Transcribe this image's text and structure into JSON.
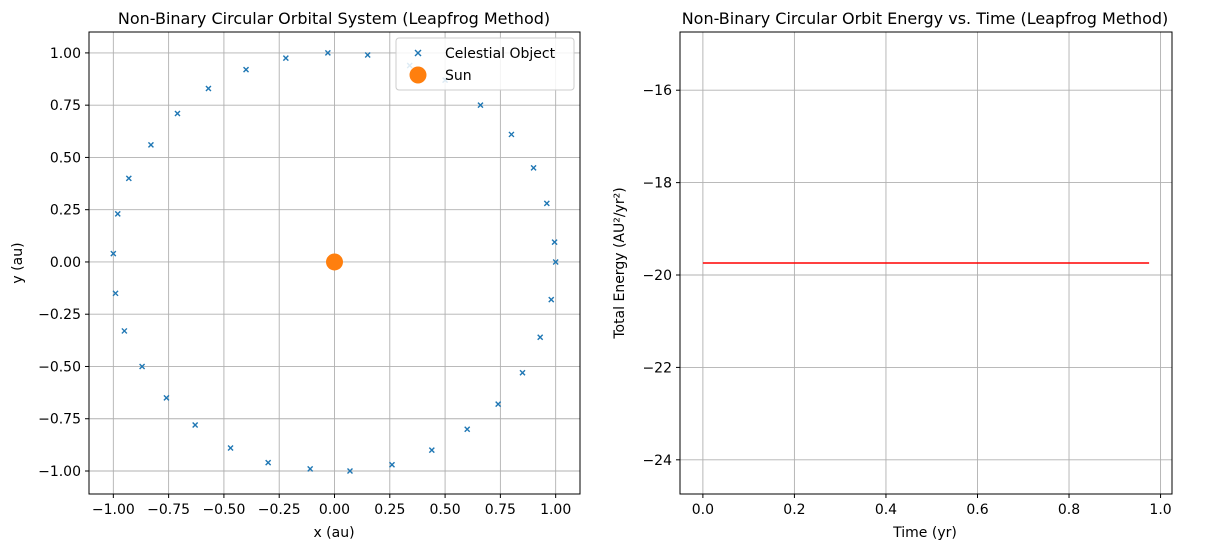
{
  "chart_data": [
    {
      "type": "scatter",
      "title": "Non-Binary Circular Orbital System (Leapfrog Method)",
      "xlabel": "x (au)",
      "ylabel": "y (au)",
      "xlim": [
        -1.11,
        1.11
      ],
      "ylim": [
        -1.11,
        1.1
      ],
      "xticks": [
        -1.0,
        -0.75,
        -0.5,
        -0.25,
        0.0,
        0.25,
        0.5,
        0.75,
        1.0
      ],
      "xtick_labels": [
        "−1.00",
        "−0.75",
        "−0.50",
        "−0.25",
        "0.00",
        "0.25",
        "0.50",
        "0.75",
        "1.00"
      ],
      "yticks": [
        -1.0,
        -0.75,
        -0.5,
        -0.25,
        0.0,
        0.25,
        0.5,
        0.75,
        1.0
      ],
      "ytick_labels": [
        "−1.00",
        "−0.75",
        "−0.50",
        "−0.25",
        "0.00",
        "0.25",
        "0.50",
        "0.75",
        "1.00"
      ],
      "grid": true,
      "legend_position": "top-right",
      "series": [
        {
          "name": "Celestial Object",
          "marker": "x",
          "color": "#1f77b4",
          "points": [
            [
              1.0,
              0.0
            ],
            [
              0.995,
              0.095
            ],
            [
              0.96,
              0.28
            ],
            [
              0.9,
              0.45
            ],
            [
              0.8,
              0.61
            ],
            [
              0.66,
              0.75
            ],
            [
              0.5,
              0.87
            ],
            [
              0.34,
              0.94
            ],
            [
              0.15,
              0.99
            ],
            [
              -0.03,
              1.0
            ],
            [
              -0.22,
              0.975
            ],
            [
              -0.4,
              0.92
            ],
            [
              -0.57,
              0.83
            ],
            [
              -0.71,
              0.71
            ],
            [
              -0.83,
              0.56
            ],
            [
              -0.93,
              0.4
            ],
            [
              -0.98,
              0.23
            ],
            [
              -1.0,
              0.04
            ],
            [
              -0.99,
              -0.15
            ],
            [
              -0.95,
              -0.33
            ],
            [
              -0.87,
              -0.5
            ],
            [
              -0.76,
              -0.65
            ],
            [
              -0.63,
              -0.78
            ],
            [
              -0.47,
              -0.89
            ],
            [
              -0.3,
              -0.96
            ],
            [
              -0.11,
              -0.99
            ],
            [
              0.07,
              -1.0
            ],
            [
              0.26,
              -0.97
            ],
            [
              0.44,
              -0.9
            ],
            [
              0.6,
              -0.8
            ],
            [
              0.74,
              -0.68
            ],
            [
              0.85,
              -0.53
            ],
            [
              0.93,
              -0.36
            ],
            [
              0.98,
              -0.18
            ]
          ]
        },
        {
          "name": "Sun",
          "marker": "o",
          "color": "#ff7f0e",
          "points": [
            [
              0.0,
              0.0
            ]
          ]
        }
      ]
    },
    {
      "type": "line",
      "title": "Non-Binary Circular Orbit Energy vs. Time (Leapfrog Method)",
      "xlabel": "Time (yr)",
      "ylabel": "Total Energy (AU²/yr²)",
      "xlim": [
        -0.05,
        1.025
      ],
      "ylim": [
        -24.74,
        -14.74
      ],
      "xticks": [
        0.0,
        0.2,
        0.4,
        0.6,
        0.8,
        1.0
      ],
      "xtick_labels": [
        "0.0",
        "0.2",
        "0.4",
        "0.6",
        "0.8",
        "1.0"
      ],
      "yticks": [
        -24,
        -22,
        -20,
        -18,
        -16
      ],
      "ytick_labels": [
        "−24",
        "−22",
        "−20",
        "−18",
        "−16"
      ],
      "grid": true,
      "series": [
        {
          "color": "#ff0000",
          "x": [
            0.0,
            0.975
          ],
          "y": [
            -19.74,
            -19.74
          ]
        }
      ]
    }
  ]
}
